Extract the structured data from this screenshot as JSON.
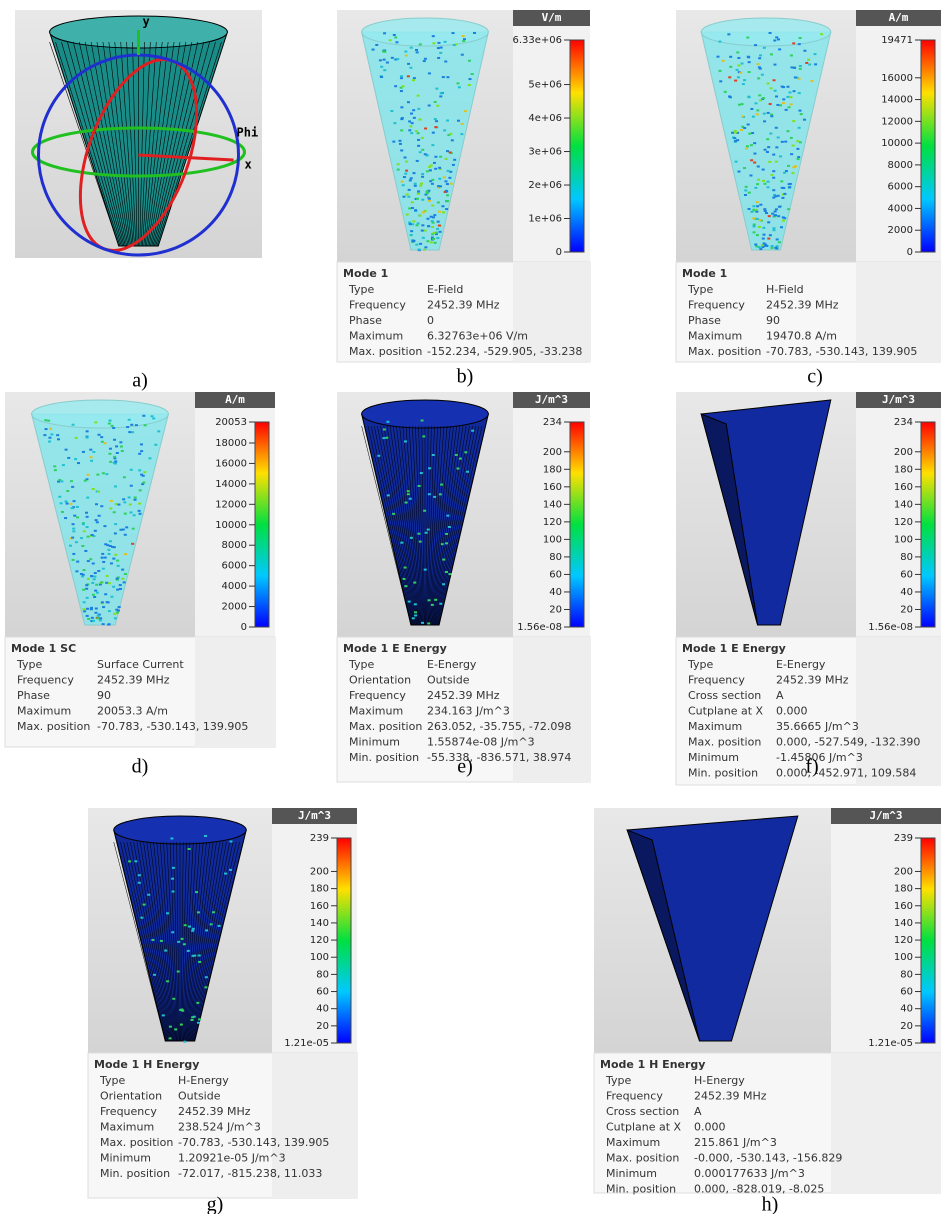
{
  "panels": [
    {
      "caption": "a)",
      "axes": [
        "y",
        "Phi",
        "x"
      ]
    },
    {
      "caption": "b)",
      "colorbar": {
        "unit": "V/m",
        "ticks": [
          0,
          {
            "value": 1000000,
            "label": "1e+06"
          },
          {
            "value": 2000000,
            "label": "2e+06"
          },
          {
            "value": 3000000,
            "label": "3e+06"
          },
          {
            "value": 4000000,
            "label": "4e+06"
          },
          {
            "value": 5000000,
            "label": "5e+06"
          },
          {
            "value": 6330000,
            "label": "6.33e+06"
          }
        ]
      },
      "info": {
        "title": "Mode 1",
        "rows": [
          [
            "Type",
            "E-Field"
          ],
          [
            "Frequency",
            "2452.39 MHz"
          ],
          [
            "Phase",
            "0"
          ],
          [
            "Maximum",
            "6.32763e+06 V/m"
          ],
          [
            "Max. position",
            "-152.234, -529.905, -33.238"
          ]
        ]
      }
    },
    {
      "caption": "c)",
      "colorbar": {
        "unit": "A/m",
        "ticks": [
          0,
          2000,
          4000,
          6000,
          8000,
          10000,
          12000,
          14000,
          16000,
          19471
        ]
      },
      "info": {
        "title": "Mode 1",
        "rows": [
          [
            "Type",
            "H-Field"
          ],
          [
            "Frequency",
            "2452.39 MHz"
          ],
          [
            "Phase",
            "90"
          ],
          [
            "Maximum",
            "19470.8 A/m"
          ],
          [
            "Max. position",
            "-70.783, -530.143, 139.905"
          ]
        ]
      }
    },
    {
      "caption": "d)",
      "colorbar": {
        "unit": "A/m",
        "ticks": [
          0,
          2000,
          4000,
          6000,
          8000,
          10000,
          12000,
          14000,
          16000,
          18000,
          20053
        ]
      },
      "info": {
        "title": "Mode 1 SC",
        "rows": [
          [
            "Type",
            "Surface Current"
          ],
          [
            "Frequency",
            "2452.39 MHz"
          ],
          [
            "Phase",
            "90"
          ],
          [
            "Maximum",
            "20053.3 A/m"
          ],
          [
            "Max. position",
            "-70.783, -530.143, 139.905"
          ]
        ]
      }
    },
    {
      "caption": "e)",
      "colorbar": {
        "unit": "J/m^3",
        "ticks": [
          {
            "value": 1.56e-08,
            "label": "1.56e-08"
          },
          20,
          40,
          60,
          80,
          100,
          120,
          140,
          160,
          180,
          200,
          234
        ]
      },
      "info": {
        "title": "Mode 1 E Energy",
        "rows": [
          [
            "Type",
            "E-Energy"
          ],
          [
            "Orientation",
            "Outside"
          ],
          [
            "Frequency",
            "2452.39 MHz"
          ],
          [
            "Maximum",
            "234.163 J/m^3"
          ],
          [
            "Max. position",
            "263.052, -35.755, -72.098"
          ],
          [
            "Minimum",
            "1.55874e-08 J/m^3"
          ],
          [
            "Min. position",
            "-55.338, -836.571, 38.974"
          ]
        ]
      }
    },
    {
      "caption": "f)",
      "colorbar": {
        "unit": "J/m^3",
        "ticks": [
          {
            "value": 1.56e-08,
            "label": "1.56e-08"
          },
          20,
          40,
          60,
          80,
          100,
          120,
          140,
          160,
          180,
          200,
          234
        ]
      },
      "info": {
        "title": "Mode 1 E Energy",
        "rows": [
          [
            "Type",
            "E-Energy"
          ],
          [
            "Frequency",
            "2452.39 MHz"
          ],
          [
            "Cross section",
            "A"
          ],
          [
            "Cutplane at X",
            "0.000"
          ],
          [
            "Maximum",
            "35.6665 J/m^3"
          ],
          [
            "Max. position",
            "0.000, -527.549, -132.390"
          ],
          [
            "Minimum",
            "-1.45806 J/m^3"
          ],
          [
            "Min. position",
            "0.000, -452.971, 109.584"
          ]
        ]
      }
    },
    {
      "caption": "g)",
      "colorbar": {
        "unit": "J/m^3",
        "ticks": [
          {
            "value": 1.21e-05,
            "label": "1.21e-05"
          },
          20,
          40,
          60,
          80,
          100,
          120,
          140,
          160,
          180,
          200,
          239
        ]
      },
      "info": {
        "title": "Mode 1 H Energy",
        "rows": [
          [
            "Type",
            "H-Energy"
          ],
          [
            "Orientation",
            "Outside"
          ],
          [
            "Frequency",
            "2452.39 MHz"
          ],
          [
            "Maximum",
            "238.524 J/m^3"
          ],
          [
            "Max. position",
            "-70.783, -530.143, 139.905"
          ],
          [
            "Minimum",
            "1.20921e-05 J/m^3"
          ],
          [
            "Min. position",
            "-72.017, -815.238, 11.033"
          ]
        ]
      }
    },
    {
      "caption": "h)",
      "colorbar": {
        "unit": "J/m^3",
        "ticks": [
          {
            "value": 1.21e-05,
            "label": "1.21e-05"
          },
          20,
          40,
          60,
          80,
          100,
          120,
          140,
          160,
          180,
          200,
          239
        ]
      },
      "info": {
        "title": "Mode 1 H Energy",
        "rows": [
          [
            "Type",
            "H-Energy"
          ],
          [
            "Frequency",
            "2452.39 MHz"
          ],
          [
            "Cross section",
            "A"
          ],
          [
            "Cutplane at X",
            "0.000"
          ],
          [
            "Maximum",
            "215.861 J/m^3"
          ],
          [
            "Max. position",
            "-0.000, -530.143, -156.829"
          ],
          [
            "Minimum",
            "0.000177633 J/m^3"
          ],
          [
            "Min. position",
            "0.000, -828.019, -8.025"
          ]
        ]
      }
    }
  ]
}
